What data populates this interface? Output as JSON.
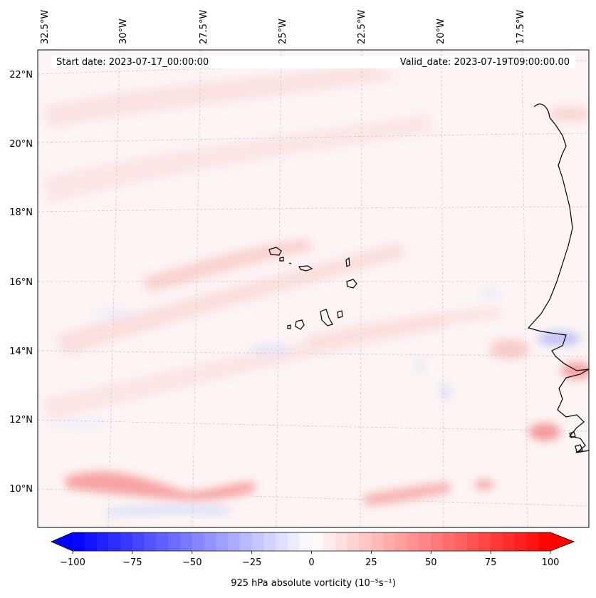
{
  "map": {
    "header": {
      "start_date": "Start date: 2023-07-17_00:00:00",
      "valid_date": "Valid_date: 2023-07-19T09:00:00.00"
    },
    "longitude_labels": [
      "32.5°W",
      "30°W",
      "27.5°W",
      "25°W",
      "22.5°W",
      "20°W",
      "17.5°W"
    ],
    "latitude_labels": [
      "22°N",
      "20°N",
      "18°N",
      "16°N",
      "14°N",
      "12°N",
      "10°N"
    ],
    "field": "925 hPa absolute vorticity",
    "colorbar": {
      "label": "925 hPa absolute vorticity (10⁻⁵s⁻¹)",
      "ticks": [
        "−100",
        "−75",
        "−50",
        "−25",
        "0",
        "25",
        "50",
        "75",
        "100"
      ],
      "tick_values": [
        -100,
        -75,
        -50,
        -25,
        0,
        25,
        50,
        75,
        100
      ],
      "range": [
        -100,
        100
      ],
      "colormap": "bwr",
      "extend": "both",
      "low_color": "#0000ff",
      "mid_color": "#ffffff",
      "high_color": "#ff0000"
    },
    "coastline_color": "#000000",
    "gridline_color": "#c8c8c8"
  }
}
